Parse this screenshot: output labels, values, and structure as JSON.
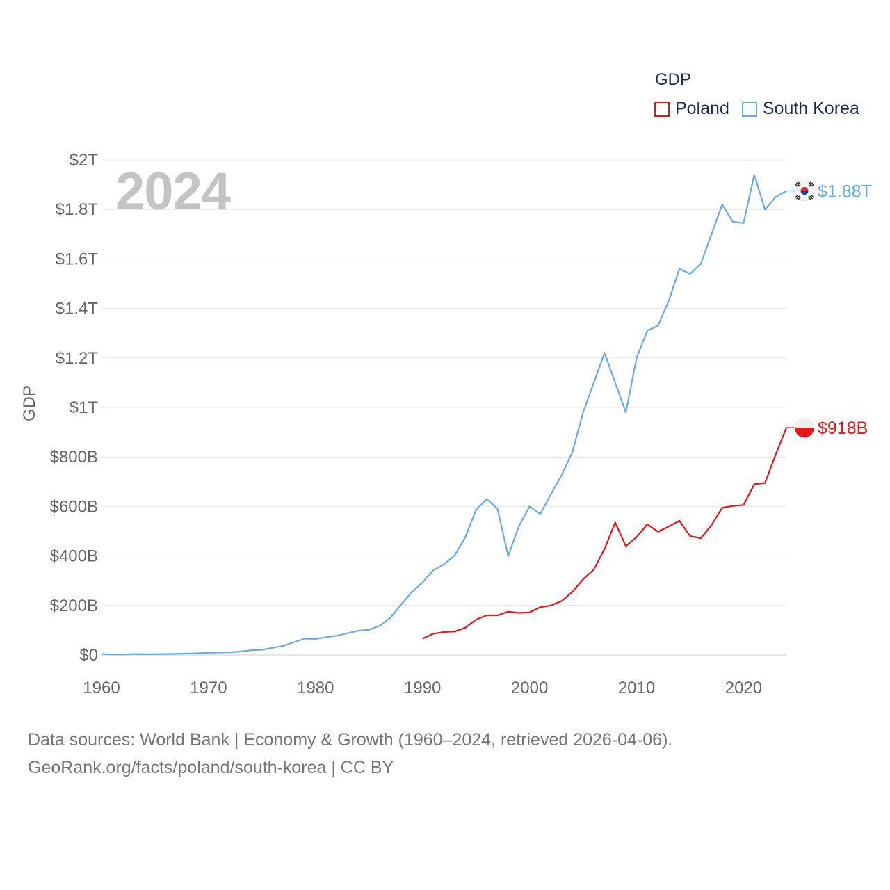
{
  "chart_data": {
    "type": "line",
    "title": "GDP",
    "ylabel": "GDP",
    "xlabel": "",
    "xlim": [
      1960,
      2024
    ],
    "ylim": [
      0,
      2000
    ],
    "unit": "billions USD",
    "grid": true,
    "legend_position": "top-right",
    "year_label": "2024",
    "x_ticks": [
      1960,
      1970,
      1980,
      1990,
      2000,
      2010,
      2020
    ],
    "x_tick_labels": [
      "1960",
      "1970",
      "1980",
      "1990",
      "2000",
      "2010",
      "2020"
    ],
    "y_ticks": [
      0,
      200,
      400,
      600,
      800,
      1000,
      1200,
      1400,
      1600,
      1800,
      2000
    ],
    "y_tick_labels": [
      "$0",
      "$200B",
      "$400B",
      "$600B",
      "$800B",
      "$1T",
      "$1.2T",
      "$1.4T",
      "$1.6T",
      "$1.8T",
      "$2T"
    ],
    "series": [
      {
        "name": "Poland",
        "color": "#e8141c",
        "end_label": "$918B",
        "flag": "poland-flag-icon",
        "x": [
          1990,
          1991,
          1992,
          1993,
          1994,
          1995,
          1996,
          1997,
          1998,
          1999,
          2000,
          2001,
          2002,
          2003,
          2004,
          2005,
          2006,
          2007,
          2008,
          2009,
          2010,
          2011,
          2012,
          2013,
          2014,
          2015,
          2016,
          2017,
          2018,
          2019,
          2020,
          2021,
          2022,
          2023,
          2024
        ],
        "values": [
          66,
          86,
          93,
          95,
          110,
          143,
          160,
          160,
          175,
          170,
          172,
          193,
          200,
          218,
          255,
          306,
          345,
          429,
          535,
          440,
          476,
          528,
          498,
          519,
          542,
          480,
          472,
          525,
          595,
          602,
          606,
          690,
          695,
          810,
          918
        ]
      },
      {
        "name": "South Korea",
        "color": "#6aaae4",
        "end_label": "$1.88T",
        "flag": "south-korea-flag-icon",
        "x": [
          1960,
          1961,
          1962,
          1963,
          1964,
          1965,
          1966,
          1967,
          1968,
          1969,
          1970,
          1971,
          1972,
          1973,
          1974,
          1975,
          1976,
          1977,
          1978,
          1979,
          1980,
          1981,
          1982,
          1983,
          1984,
          1985,
          1986,
          1987,
          1988,
          1989,
          1990,
          1991,
          1992,
          1993,
          1994,
          1995,
          1996,
          1997,
          1998,
          1999,
          2000,
          2001,
          2002,
          2003,
          2004,
          2005,
          2006,
          2007,
          2008,
          2009,
          2010,
          2011,
          2012,
          2013,
          2014,
          2015,
          2016,
          2017,
          2018,
          2019,
          2020,
          2021,
          2022,
          2023,
          2024
        ],
        "values": [
          4,
          2,
          2,
          4,
          3,
          3,
          4,
          5,
          6,
          7,
          9,
          10,
          11,
          14,
          19,
          21,
          29,
          37,
          52,
          66,
          65,
          72,
          78,
          88,
          98,
          102,
          118,
          150,
          204,
          254,
          293,
          342,
          366,
          402,
          476,
          587,
          630,
          590,
          400,
          520,
          600,
          570,
          650,
          727,
          820,
          980,
          1100,
          1220,
          1100,
          980,
          1200,
          1310,
          1330,
          1430,
          1560,
          1540,
          1580,
          1700,
          1820,
          1750,
          1745,
          1940,
          1800,
          1850,
          1875
        ]
      }
    ]
  },
  "legend": {
    "title": "GDP"
  },
  "footer": {
    "line1": "Data sources: World Bank | Economy & Growth (1960–2024, retrieved 2026-04-06).",
    "line2": "GeoRank.org/facts/poland/south-korea | CC BY"
  }
}
